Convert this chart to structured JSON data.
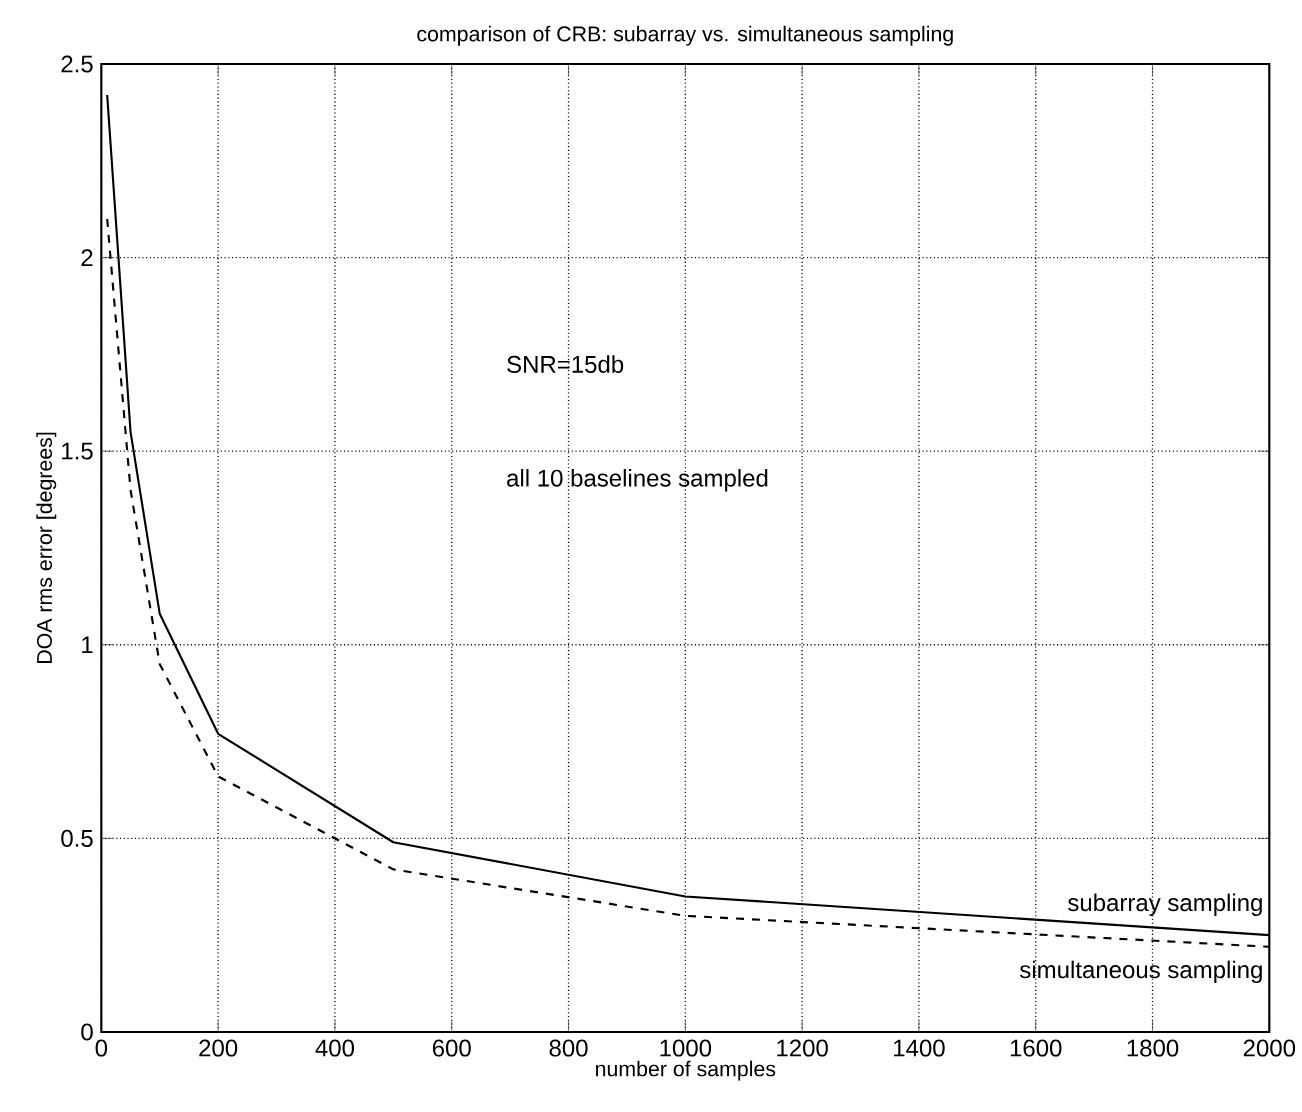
{
  "chart_data": {
    "type": "line",
    "title": "comparison of CRB: subarray vs. simultaneous sampling",
    "xlabel": "number of samples",
    "ylabel": "DOA rms error [degrees]",
    "x": [
      10,
      50,
      100,
      200,
      500,
      1000,
      2000
    ],
    "series": [
      {
        "name": "subarray sampling",
        "color": "#000000",
        "line_style": "solid",
        "values": [
          2.42,
          1.55,
          1.08,
          0.77,
          0.49,
          0.35,
          0.25
        ]
      },
      {
        "name": "simultaneous sampling",
        "color": "#000000",
        "line_style": "dashed",
        "values": [
          2.1,
          1.4,
          0.95,
          0.66,
          0.42,
          0.3,
          0.22
        ]
      }
    ],
    "annotations": [
      "SNR=15db",
      "all 10 baselines sampled"
    ],
    "xlim": [
      0,
      2000
    ],
    "ylim": [
      0,
      2.5
    ],
    "xticks": [
      0,
      200,
      400,
      600,
      800,
      1000,
      1200,
      1400,
      1600,
      1800,
      2000
    ],
    "yticks": [
      0,
      0.5,
      1,
      1.5,
      2,
      2.5
    ],
    "grid": true,
    "legend": false,
    "marker": "none"
  }
}
